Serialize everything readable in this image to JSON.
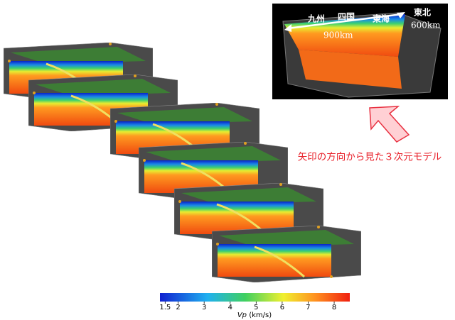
{
  "inset": {
    "labels": {
      "kyushu": "九州",
      "shikoku": "四国",
      "tokai": "東海",
      "tohoku": "東北",
      "width_label": "900km",
      "depth_label": "600km"
    }
  },
  "caption": "矢印の方向から見た３次元モデル",
  "colorbar": {
    "label_var": "Vp",
    "label_unit": "(km/s)",
    "lim": [
      1.3,
      8.6
    ],
    "ticks": [
      1.5,
      2,
      3,
      4,
      5,
      6,
      7,
      8
    ]
  }
}
